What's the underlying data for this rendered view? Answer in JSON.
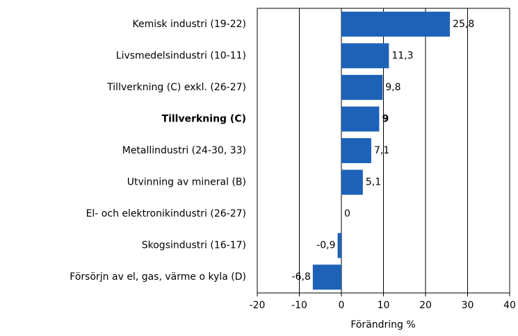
{
  "chart_data": {
    "type": "hbar",
    "categories": [
      "Kemisk industri (19-22)",
      "Livsmedelsindustri (10-11)",
      "Tillverkning (C) exkl. (26-27)",
      "Tillverkning (C)",
      "Metallindustri (24-30, 33)",
      "Utvinning av mineral (B)",
      "El- och elektronikindustri (26-27)",
      "Skogsindustri (16-17)",
      "Försörjn av el, gas, värme o kyla (D)"
    ],
    "values": [
      25.8,
      11.3,
      9.8,
      9,
      7.1,
      5.1,
      0,
      -0.9,
      -6.8
    ],
    "value_labels": [
      "25,8",
      "11,3",
      "9,8",
      "9",
      "7,1",
      "5,1",
      "0",
      "-0,9",
      "-6,8"
    ],
    "bold_index": 3,
    "color": "#1e62b8",
    "x_label": "Förändring %",
    "xlim": [
      -20,
      40
    ],
    "xticks": [
      -20,
      -10,
      0,
      10,
      20,
      30,
      40
    ],
    "grid": true
  }
}
